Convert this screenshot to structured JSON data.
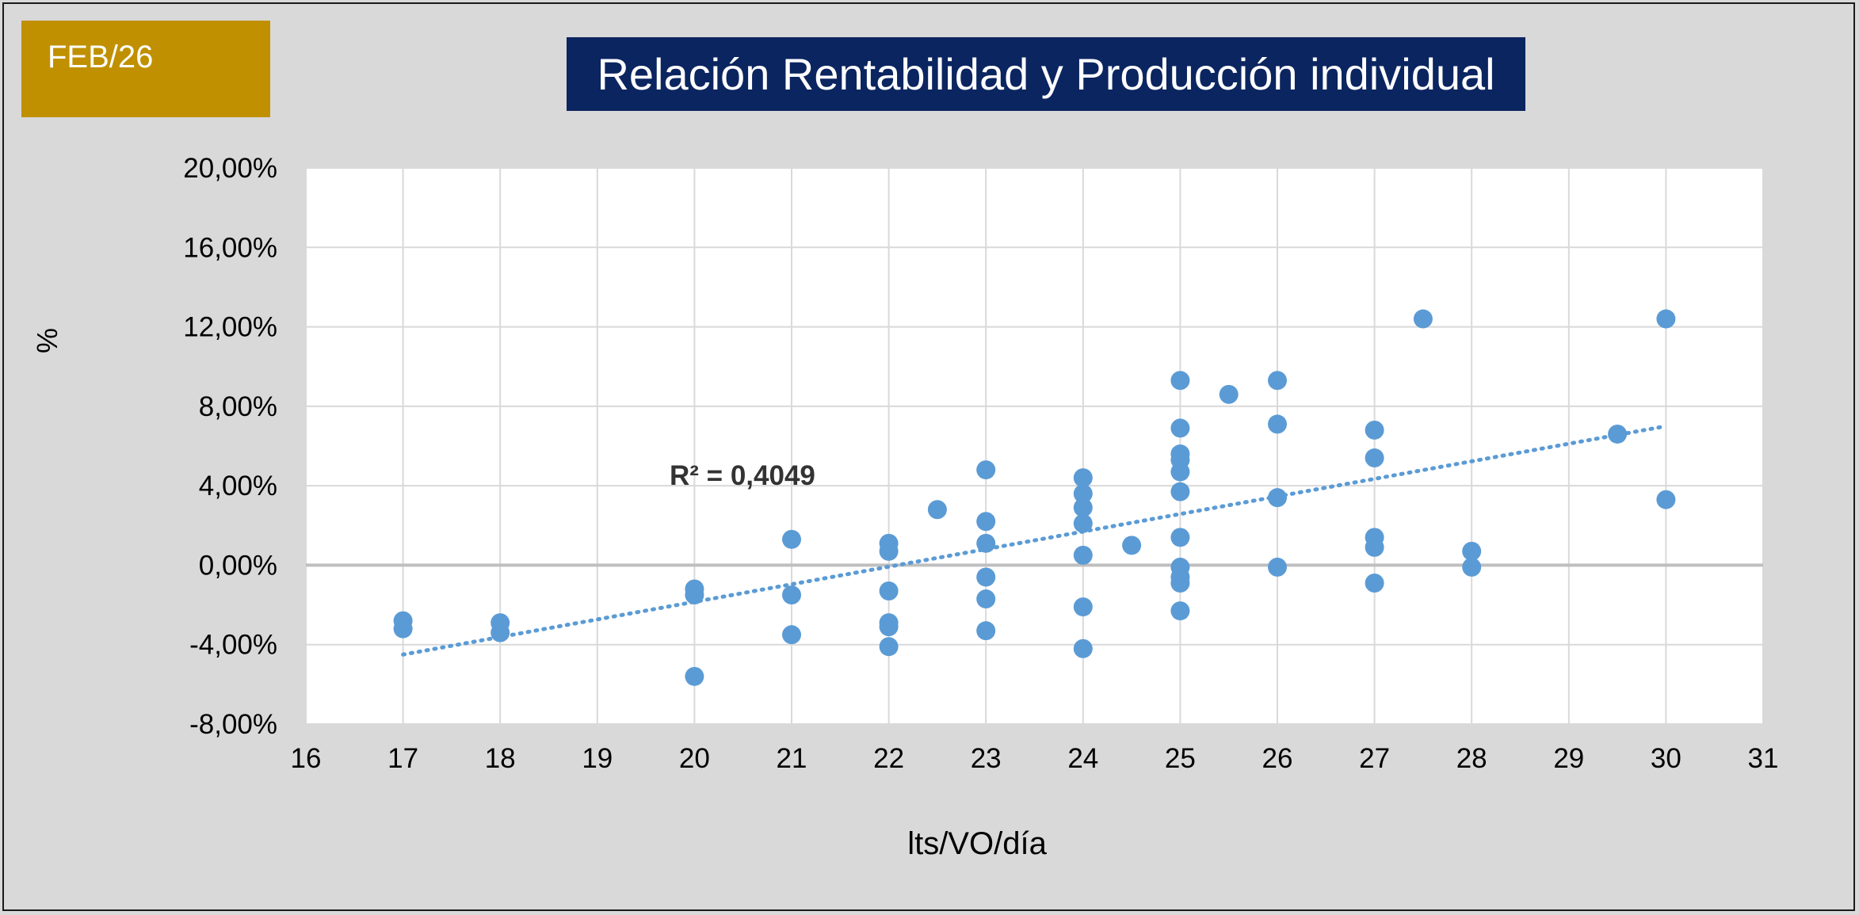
{
  "badge": {
    "label": "FEB/26"
  },
  "colors": {
    "badge": "#c09000",
    "title_bg": "#0b2560",
    "marker": "#5b9bd5",
    "trendline": "#5b9bd5",
    "grid": "#d9d9d9",
    "zero_line": "#bfbfbf"
  },
  "chart_data": {
    "type": "scatter",
    "title": "Relación Rentabilidad y Producción individual",
    "xlabel": "lts/VO/día",
    "ylabel": "%",
    "xlim": [
      16,
      31
    ],
    "ylim": [
      -8,
      20
    ],
    "x_ticks": [
      16,
      17,
      18,
      19,
      20,
      21,
      22,
      23,
      24,
      25,
      26,
      27,
      28,
      29,
      30,
      31
    ],
    "y_ticks": [
      -8,
      -4,
      0,
      4,
      8,
      12,
      16,
      20
    ],
    "y_tick_labels": [
      "-8,00%",
      "-4,00%",
      "0,00%",
      "4,00%",
      "8,00%",
      "12,00%",
      "16,00%",
      "20,00%"
    ],
    "grid": true,
    "legend": "none",
    "annotation": "R² = 0,4049",
    "trendline": {
      "style": "dotted",
      "x": [
        17,
        30
      ],
      "y": [
        -4.5,
        7.0
      ]
    },
    "points": [
      [
        17,
        -2.8
      ],
      [
        17,
        -3.2
      ],
      [
        18,
        -2.9
      ],
      [
        18,
        -3.4
      ],
      [
        20,
        -1.2
      ],
      [
        20,
        -1.5
      ],
      [
        20,
        -5.6
      ],
      [
        21,
        1.3
      ],
      [
        21,
        -1.5
      ],
      [
        21,
        -3.5
      ],
      [
        22,
        1.1
      ],
      [
        22,
        0.7
      ],
      [
        22,
        -1.3
      ],
      [
        22,
        -2.9
      ],
      [
        22,
        -3.1
      ],
      [
        22,
        -4.1
      ],
      [
        22.5,
        2.8
      ],
      [
        23,
        4.8
      ],
      [
        23,
        2.2
      ],
      [
        23,
        1.1
      ],
      [
        23,
        -0.6
      ],
      [
        23,
        -1.7
      ],
      [
        23,
        -3.3
      ],
      [
        24,
        4.4
      ],
      [
        24,
        3.6
      ],
      [
        24,
        2.9
      ],
      [
        24,
        2.1
      ],
      [
        24,
        0.5
      ],
      [
        24,
        -2.1
      ],
      [
        24,
        -4.2
      ],
      [
        24.5,
        1.0
      ],
      [
        25,
        9.3
      ],
      [
        25,
        6.9
      ],
      [
        25,
        5.6
      ],
      [
        25,
        5.3
      ],
      [
        25,
        4.7
      ],
      [
        25,
        3.7
      ],
      [
        25,
        1.4
      ],
      [
        25,
        -0.1
      ],
      [
        25,
        -0.6
      ],
      [
        25,
        -0.9
      ],
      [
        25,
        -2.3
      ],
      [
        25.5,
        8.6
      ],
      [
        26,
        9.3
      ],
      [
        26,
        7.1
      ],
      [
        26,
        3.4
      ],
      [
        26,
        -0.1
      ],
      [
        27,
        6.8
      ],
      [
        27,
        5.4
      ],
      [
        27,
        1.4
      ],
      [
        27,
        0.9
      ],
      [
        27,
        -0.9
      ],
      [
        27.5,
        12.4
      ],
      [
        28,
        0.7
      ],
      [
        28,
        -0.1
      ],
      [
        29.5,
        6.6
      ],
      [
        30,
        12.4
      ],
      [
        30,
        3.3
      ]
    ]
  }
}
